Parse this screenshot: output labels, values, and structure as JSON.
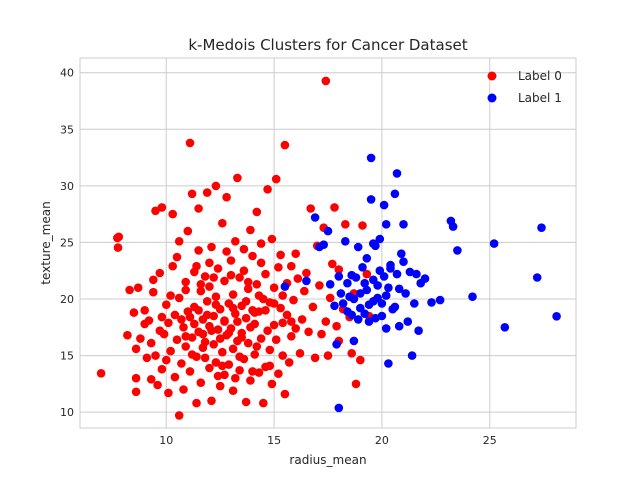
{
  "chart_data": {
    "type": "scatter",
    "title": "k-Medois Clusters for Cancer Dataset",
    "xlabel": "radius_mean",
    "ylabel": "texture_mean",
    "xlim": [
      6.0,
      29.0
    ],
    "ylim": [
      8.6,
      41.3
    ],
    "xticks": [
      10,
      15,
      20,
      25
    ],
    "yticks": [
      10,
      15,
      20,
      25,
      30,
      35,
      40
    ],
    "grid": true,
    "legend_position": "top-right",
    "series": [
      {
        "name": "Label 0",
        "color": "#ff0000",
        "points": [
          [
            6.98,
            13.43
          ],
          [
            7.76,
            24.54
          ],
          [
            7.73,
            25.4
          ],
          [
            7.8,
            25.5
          ],
          [
            8.2,
            16.8
          ],
          [
            8.3,
            20.8
          ],
          [
            8.5,
            18.8
          ],
          [
            8.6,
            11.8
          ],
          [
            8.6,
            13.0
          ],
          [
            8.6,
            15.6
          ],
          [
            8.7,
            21.0
          ],
          [
            8.8,
            16.5
          ],
          [
            9.0,
            17.8
          ],
          [
            9.0,
            19.0
          ],
          [
            9.1,
            14.8
          ],
          [
            9.2,
            18.1
          ],
          [
            9.3,
            12.9
          ],
          [
            9.3,
            16.1
          ],
          [
            9.4,
            20.6
          ],
          [
            9.4,
            21.7
          ],
          [
            9.5,
            27.8
          ],
          [
            9.5,
            15.0
          ],
          [
            9.6,
            12.4
          ],
          [
            9.7,
            17.2
          ],
          [
            9.7,
            22.3
          ],
          [
            9.8,
            18.4
          ],
          [
            9.8,
            28.1
          ],
          [
            9.8,
            13.8
          ],
          [
            9.9,
            16.9
          ],
          [
            10.0,
            19.5
          ],
          [
            10.0,
            14.6
          ],
          [
            10.1,
            11.7
          ],
          [
            10.1,
            17.9
          ],
          [
            10.2,
            20.3
          ],
          [
            10.2,
            15.4
          ],
          [
            10.3,
            27.5
          ],
          [
            10.3,
            22.9
          ],
          [
            10.4,
            13.1
          ],
          [
            10.4,
            18.6
          ],
          [
            10.5,
            16.4
          ],
          [
            10.5,
            23.7
          ],
          [
            10.6,
            9.71
          ],
          [
            10.6,
            25.1
          ],
          [
            10.6,
            20.1
          ],
          [
            10.7,
            14.3
          ],
          [
            10.8,
            17.5
          ],
          [
            10.8,
            12.0
          ],
          [
            10.9,
            21.5
          ],
          [
            10.9,
            15.8
          ],
          [
            11.0,
            18.9
          ],
          [
            11.0,
            26.0
          ],
          [
            11.1,
            33.8
          ],
          [
            11.1,
            13.6
          ],
          [
            11.2,
            16.6
          ],
          [
            11.2,
            29.3
          ],
          [
            11.3,
            22.4
          ],
          [
            11.3,
            19.3
          ],
          [
            11.4,
            10.8
          ],
          [
            11.4,
            14.9
          ],
          [
            11.5,
            17.1
          ],
          [
            11.5,
            24.3
          ],
          [
            11.5,
            28.0
          ],
          [
            11.6,
            20.7
          ],
          [
            11.6,
            12.6
          ],
          [
            11.7,
            18.2
          ],
          [
            11.7,
            15.7
          ],
          [
            11.8,
            22.0
          ],
          [
            11.8,
            16.2
          ],
          [
            11.9,
            19.8
          ],
          [
            11.9,
            29.4
          ],
          [
            12.0,
            13.9
          ],
          [
            12.0,
            17.6
          ],
          [
            12.0,
            21.1
          ],
          [
            12.1,
            24.6
          ],
          [
            12.1,
            11.0
          ],
          [
            12.2,
            18.5
          ],
          [
            12.2,
            16.0
          ],
          [
            12.3,
            30.0
          ],
          [
            12.3,
            20.2
          ],
          [
            12.3,
            14.4
          ],
          [
            12.4,
            22.7
          ],
          [
            12.4,
            17.3
          ],
          [
            12.5,
            19.1
          ],
          [
            12.5,
            12.3
          ],
          [
            12.6,
            15.3
          ],
          [
            12.6,
            26.7
          ],
          [
            12.7,
            18.0
          ],
          [
            12.7,
            21.6
          ],
          [
            12.7,
            13.3
          ],
          [
            12.8,
            16.8
          ],
          [
            12.8,
            29.0
          ],
          [
            12.9,
            19.6
          ],
          [
            12.9,
            14.2
          ],
          [
            13.0,
            23.4
          ],
          [
            13.0,
            17.4
          ],
          [
            13.1,
            11.9
          ],
          [
            13.1,
            20.4
          ],
          [
            13.1,
            15.6
          ],
          [
            13.2,
            18.7
          ],
          [
            13.2,
            25.1
          ],
          [
            13.3,
            30.7
          ],
          [
            13.3,
            16.3
          ],
          [
            13.4,
            21.9
          ],
          [
            13.4,
            13.7
          ],
          [
            13.5,
            19.4
          ],
          [
            13.5,
            17.0
          ],
          [
            13.6,
            22.5
          ],
          [
            13.6,
            14.7
          ],
          [
            13.7,
            10.9
          ],
          [
            13.7,
            18.3
          ],
          [
            13.8,
            20.9
          ],
          [
            13.8,
            16.1
          ],
          [
            13.9,
            26.1
          ],
          [
            13.9,
            12.8
          ],
          [
            14.0,
            19.0
          ],
          [
            14.0,
            23.8
          ],
          [
            14.1,
            15.1
          ],
          [
            14.1,
            17.8
          ],
          [
            14.2,
            21.3
          ],
          [
            14.2,
            27.7
          ],
          [
            14.3,
            13.5
          ],
          [
            14.3,
            18.9
          ],
          [
            14.4,
            16.5
          ],
          [
            14.4,
            24.9
          ],
          [
            14.5,
            20.0
          ],
          [
            14.5,
            10.8
          ],
          [
            14.6,
            14.0
          ],
          [
            14.6,
            22.2
          ],
          [
            14.7,
            17.2
          ],
          [
            14.7,
            29.7
          ],
          [
            14.8,
            19.7
          ],
          [
            14.8,
            15.5
          ],
          [
            14.9,
            25.3
          ],
          [
            14.9,
            12.5
          ],
          [
            15.0,
            21.0
          ],
          [
            15.0,
            17.7
          ],
          [
            15.1,
            30.6
          ],
          [
            15.1,
            16.4
          ],
          [
            15.2,
            22.8
          ],
          [
            15.2,
            13.4
          ],
          [
            15.3,
            19.2
          ],
          [
            15.3,
            23.9
          ],
          [
            15.4,
            15.0
          ],
          [
            15.4,
            17.9
          ],
          [
            15.5,
            33.6
          ],
          [
            15.5,
            11.6
          ],
          [
            15.6,
            21.4
          ],
          [
            15.6,
            18.6
          ],
          [
            15.7,
            14.4
          ],
          [
            15.8,
            22.9
          ],
          [
            15.8,
            16.7
          ],
          [
            15.9,
            19.9
          ],
          [
            16.0,
            24.0
          ],
          [
            16.0,
            17.4
          ],
          [
            16.1,
            21.8
          ],
          [
            16.2,
            15.2
          ],
          [
            16.3,
            18.2
          ],
          [
            16.4,
            20.7
          ],
          [
            16.5,
            22.3
          ],
          [
            16.6,
            17.1
          ],
          [
            16.7,
            28.0
          ],
          [
            16.8,
            19.3
          ],
          [
            16.9,
            14.8
          ],
          [
            17.0,
            24.7
          ],
          [
            17.1,
            21.2
          ],
          [
            17.2,
            16.9
          ],
          [
            17.3,
            26.3
          ],
          [
            17.4,
            39.28
          ],
          [
            17.4,
            18.0
          ],
          [
            17.5,
            15.0
          ],
          [
            17.6,
            20.1
          ],
          [
            17.7,
            23.1
          ],
          [
            17.8,
            28.1
          ],
          [
            17.9,
            17.6
          ],
          [
            18.0,
            22.6
          ],
          [
            18.0,
            16.3
          ],
          [
            18.2,
            19.1
          ],
          [
            18.3,
            26.6
          ],
          [
            18.5,
            18.4
          ],
          [
            18.6,
            15.2
          ],
          [
            18.7,
            20.5
          ],
          [
            18.8,
            12.5
          ],
          [
            19.0,
            14.6
          ],
          [
            19.1,
            26.5
          ],
          [
            19.3,
            22.2
          ],
          [
            19.4,
            18.5
          ],
          [
            10.9,
            16.7
          ],
          [
            11.1,
            18.4
          ],
          [
            11.3,
            17.8
          ],
          [
            11.5,
            19.0
          ],
          [
            11.7,
            16.9
          ],
          [
            11.9,
            18.6
          ],
          [
            12.1,
            17.2
          ],
          [
            12.3,
            19.5
          ],
          [
            12.5,
            16.5
          ],
          [
            12.7,
            18.1
          ],
          [
            12.9,
            17.0
          ],
          [
            13.1,
            19.2
          ],
          [
            13.3,
            18.0
          ],
          [
            13.5,
            16.6
          ],
          [
            13.7,
            19.8
          ],
          [
            13.9,
            17.5
          ],
          [
            14.1,
            18.8
          ],
          [
            14.3,
            20.3
          ],
          [
            11.6,
            21.3
          ],
          [
            11.8,
            14.8
          ],
          [
            12.2,
            21.9
          ],
          [
            12.6,
            14.1
          ],
          [
            13.0,
            22.1
          ],
          [
            13.4,
            14.9
          ],
          [
            13.8,
            21.5
          ],
          [
            14.2,
            15.8
          ],
          [
            14.6,
            19.0
          ],
          [
            15.0,
            19.6
          ],
          [
            15.4,
            20.3
          ],
          [
            15.8,
            18.0
          ],
          [
            10.7,
            18.2
          ],
          [
            10.9,
            20.8
          ],
          [
            11.2,
            15.1
          ],
          [
            11.4,
            22.9
          ],
          [
            12.0,
            23.2
          ],
          [
            12.4,
            13.2
          ],
          [
            12.8,
            24.2
          ],
          [
            13.2,
            13.0
          ],
          [
            13.6,
            24.4
          ],
          [
            14.0,
            13.6
          ],
          [
            14.4,
            23.2
          ],
          [
            14.8,
            14.1
          ]
        ]
      },
      {
        "name": "Label 1",
        "color": "#0000ff",
        "points": [
          [
            15.5,
            21.1
          ],
          [
            16.5,
            21.6
          ],
          [
            16.9,
            27.2
          ],
          [
            17.1,
            24.6
          ],
          [
            17.3,
            24.8
          ],
          [
            17.5,
            26.0
          ],
          [
            17.6,
            21.3
          ],
          [
            17.8,
            19.4
          ],
          [
            17.9,
            16.0
          ],
          [
            18.0,
            10.38
          ],
          [
            18.0,
            22.0
          ],
          [
            18.1,
            20.5
          ],
          [
            18.2,
            19.6
          ],
          [
            18.3,
            25.1
          ],
          [
            18.4,
            18.9
          ],
          [
            18.5,
            20.2
          ],
          [
            18.6,
            22.1
          ],
          [
            18.7,
            20.0
          ],
          [
            18.7,
            16.3
          ],
          [
            18.8,
            21.9
          ],
          [
            18.9,
            24.6
          ],
          [
            19.0,
            19.2
          ],
          [
            19.1,
            22.8
          ],
          [
            19.2,
            18.7
          ],
          [
            19.3,
            20.8
          ],
          [
            19.4,
            19.5
          ],
          [
            19.5,
            32.47
          ],
          [
            19.5,
            28.8
          ],
          [
            19.6,
            24.9
          ],
          [
            19.6,
            21.7
          ],
          [
            19.7,
            18.3
          ],
          [
            19.8,
            20.1
          ],
          [
            19.9,
            25.3
          ],
          [
            19.9,
            22.5
          ],
          [
            20.0,
            19.6
          ],
          [
            20.1,
            28.3
          ],
          [
            20.2,
            26.6
          ],
          [
            20.2,
            17.4
          ],
          [
            20.3,
            14.3
          ],
          [
            20.3,
            21.0
          ],
          [
            20.4,
            23.0
          ],
          [
            20.5,
            19.1
          ],
          [
            20.6,
            29.3
          ],
          [
            20.7,
            31.1
          ],
          [
            20.7,
            22.2
          ],
          [
            20.8,
            20.9
          ],
          [
            20.9,
            24.0
          ],
          [
            21.0,
            23.3
          ],
          [
            21.0,
            26.6
          ],
          [
            21.1,
            20.5
          ],
          [
            21.2,
            18.0
          ],
          [
            21.3,
            22.4
          ],
          [
            21.4,
            15.0
          ],
          [
            21.6,
            22.2
          ],
          [
            21.7,
            17.2
          ],
          [
            21.8,
            21.4
          ],
          [
            22.0,
            21.8
          ],
          [
            22.3,
            19.7
          ],
          [
            22.7,
            19.9
          ],
          [
            23.2,
            26.9
          ],
          [
            23.3,
            26.4
          ],
          [
            23.5,
            24.3
          ],
          [
            24.2,
            20.2
          ],
          [
            25.2,
            24.9
          ],
          [
            25.7,
            17.5
          ],
          [
            27.2,
            21.9
          ],
          [
            27.4,
            26.3
          ],
          [
            28.1,
            18.47
          ],
          [
            18.9,
            18.2
          ],
          [
            19.0,
            20.5
          ],
          [
            19.2,
            21.4
          ],
          [
            19.4,
            18.0
          ],
          [
            19.6,
            19.8
          ],
          [
            19.8,
            21.2
          ],
          [
            20.0,
            18.5
          ],
          [
            20.2,
            20.3
          ],
          [
            20.4,
            22.7
          ],
          [
            20.6,
            19.3
          ],
          [
            20.8,
            17.6
          ],
          [
            19.3,
            23.6
          ],
          [
            19.7,
            24.7
          ],
          [
            20.1,
            22.0
          ],
          [
            21.5,
            19.6
          ],
          [
            18.6,
            18.6
          ],
          [
            18.4,
            21.4
          ]
        ]
      }
    ]
  }
}
